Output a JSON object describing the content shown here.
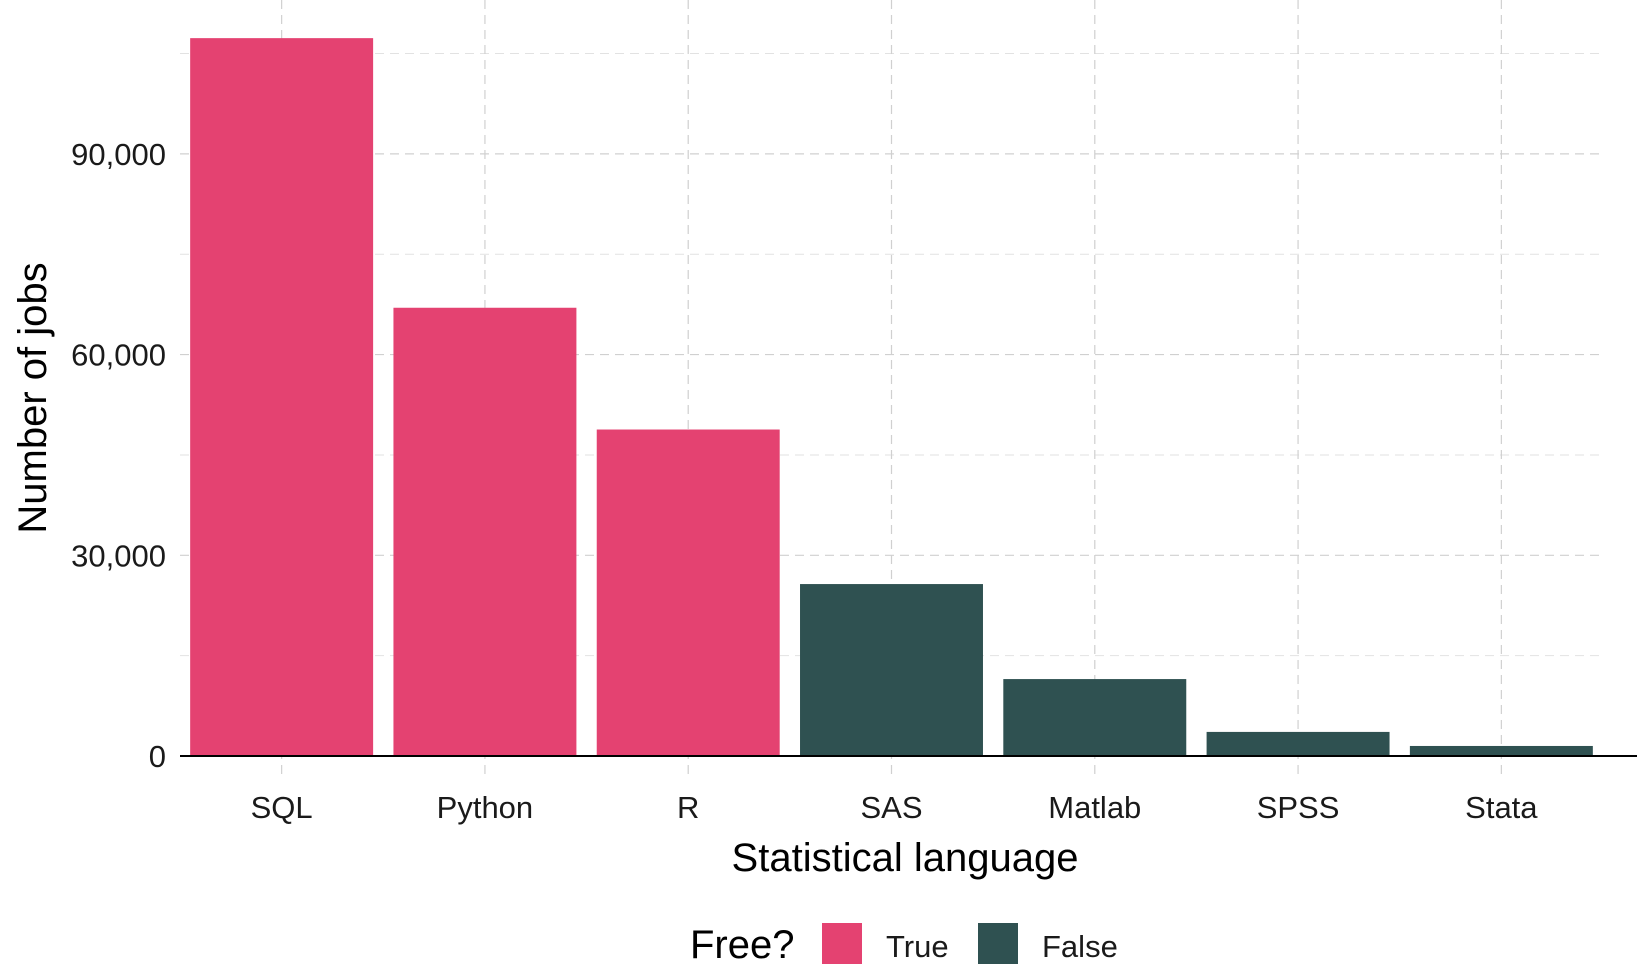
{
  "chart_data": {
    "type": "bar",
    "categories": [
      "SQL",
      "Python",
      "R",
      "SAS",
      "Matlab",
      "SPSS",
      "Stata"
    ],
    "values": [
      107300,
      67000,
      48800,
      25700,
      11500,
      3600,
      1500
    ],
    "free": [
      "True",
      "True",
      "True",
      "False",
      "False",
      "False",
      "False"
    ],
    "xlabel": "Statistical language",
    "ylabel": "Number of jobs",
    "ylim": [
      0,
      113000
    ],
    "yticks": [
      0,
      30000,
      60000,
      90000
    ],
    "ytick_labels": [
      "0",
      "30,000",
      "60,000",
      "90,000"
    ],
    "grid": true,
    "legend": {
      "title": "Free?",
      "placement": "bottom",
      "entries": [
        {
          "label": "True",
          "color": "#e44271"
        },
        {
          "label": "False",
          "color": "#2f5151"
        }
      ]
    }
  }
}
